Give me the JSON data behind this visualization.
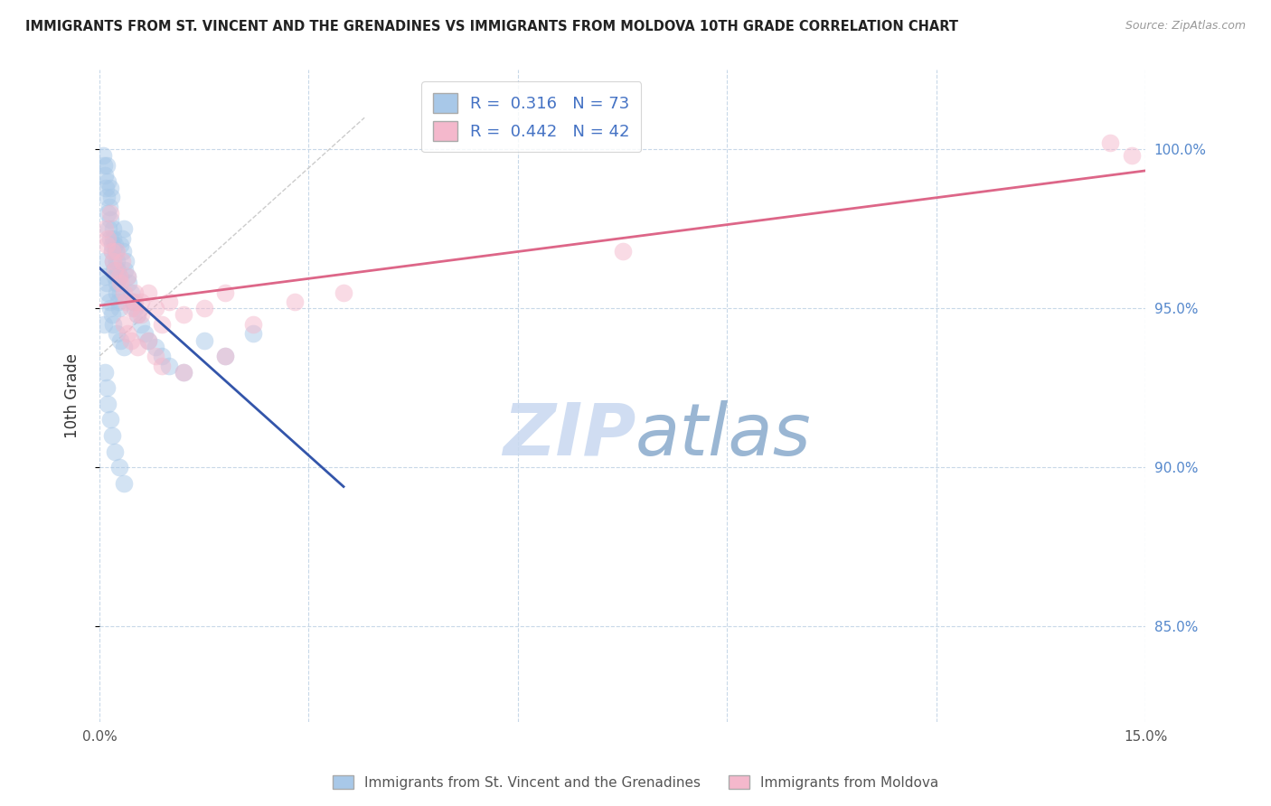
{
  "title": "IMMIGRANTS FROM ST. VINCENT AND THE GRENADINES VS IMMIGRANTS FROM MOLDOVA 10TH GRADE CORRELATION CHART",
  "source": "Source: ZipAtlas.com",
  "ylabel": "10th Grade",
  "xlim": [
    0.0,
    15.0
  ],
  "ylim": [
    82.0,
    102.5
  ],
  "yticks": [
    85.0,
    90.0,
    95.0,
    100.0
  ],
  "ytick_labels": [
    "85.0%",
    "90.0%",
    "95.0%",
    "100.0%"
  ],
  "R_blue": 0.316,
  "N_blue": 73,
  "R_pink": 0.442,
  "N_pink": 42,
  "blue_color": "#a8c8e8",
  "pink_color": "#f4b8cc",
  "blue_line_color": "#3355aa",
  "pink_line_color": "#dd6688",
  "legend_label_blue": "Immigrants from St. Vincent and the Grenadines",
  "legend_label_pink": "Immigrants from Moldova",
  "blue_x": [
    0.05,
    0.07,
    0.08,
    0.09,
    0.1,
    0.1,
    0.12,
    0.12,
    0.13,
    0.14,
    0.15,
    0.15,
    0.16,
    0.17,
    0.18,
    0.18,
    0.19,
    0.2,
    0.2,
    0.21,
    0.22,
    0.22,
    0.23,
    0.24,
    0.25,
    0.25,
    0.26,
    0.27,
    0.28,
    0.28,
    0.3,
    0.3,
    0.32,
    0.33,
    0.35,
    0.36,
    0.38,
    0.4,
    0.42,
    0.45,
    0.48,
    0.5,
    0.55,
    0.6,
    0.65,
    0.7,
    0.8,
    0.9,
    1.0,
    1.2,
    1.5,
    1.8,
    2.2,
    0.06,
    0.08,
    0.1,
    0.12,
    0.14,
    0.16,
    0.18,
    0.2,
    0.25,
    0.3,
    0.35,
    0.06,
    0.08,
    0.1,
    0.12,
    0.15,
    0.18,
    0.22,
    0.28,
    0.35
  ],
  "blue_y": [
    99.8,
    99.5,
    99.2,
    98.8,
    99.5,
    98.5,
    99.0,
    98.0,
    97.5,
    98.2,
    98.8,
    97.8,
    97.2,
    98.5,
    97.0,
    96.8,
    97.5,
    96.5,
    97.2,
    96.2,
    97.0,
    96.0,
    96.8,
    95.8,
    96.5,
    95.5,
    96.2,
    95.2,
    96.0,
    95.0,
    97.0,
    95.5,
    97.2,
    96.8,
    97.5,
    96.2,
    96.5,
    96.0,
    95.8,
    95.5,
    95.2,
    95.0,
    94.8,
    94.5,
    94.2,
    94.0,
    93.8,
    93.5,
    93.2,
    93.0,
    94.0,
    93.5,
    94.2,
    96.5,
    96.0,
    95.8,
    95.5,
    95.2,
    95.0,
    94.8,
    94.5,
    94.2,
    94.0,
    93.8,
    94.5,
    93.0,
    92.5,
    92.0,
    91.5,
    91.0,
    90.5,
    90.0,
    89.5
  ],
  "pink_x": [
    0.08,
    0.1,
    0.12,
    0.15,
    0.18,
    0.2,
    0.22,
    0.25,
    0.28,
    0.3,
    0.32,
    0.35,
    0.38,
    0.4,
    0.45,
    0.5,
    0.55,
    0.6,
    0.7,
    0.8,
    0.9,
    1.0,
    1.2,
    1.5,
    1.8,
    2.2,
    2.8,
    0.35,
    0.4,
    0.45,
    0.5,
    0.55,
    0.6,
    0.7,
    0.8,
    0.9,
    1.2,
    1.8,
    3.5,
    7.5,
    14.5,
    14.8
  ],
  "pink_y": [
    97.5,
    97.0,
    97.2,
    98.0,
    96.8,
    96.5,
    96.2,
    96.8,
    96.0,
    95.8,
    96.5,
    95.5,
    95.2,
    96.0,
    95.0,
    95.5,
    94.8,
    95.2,
    95.5,
    95.0,
    94.5,
    95.2,
    94.8,
    95.0,
    95.5,
    94.5,
    95.2,
    94.5,
    94.2,
    94.0,
    95.2,
    93.8,
    94.8,
    94.0,
    93.5,
    93.2,
    93.0,
    93.5,
    95.5,
    96.8,
    100.2,
    99.8
  ]
}
